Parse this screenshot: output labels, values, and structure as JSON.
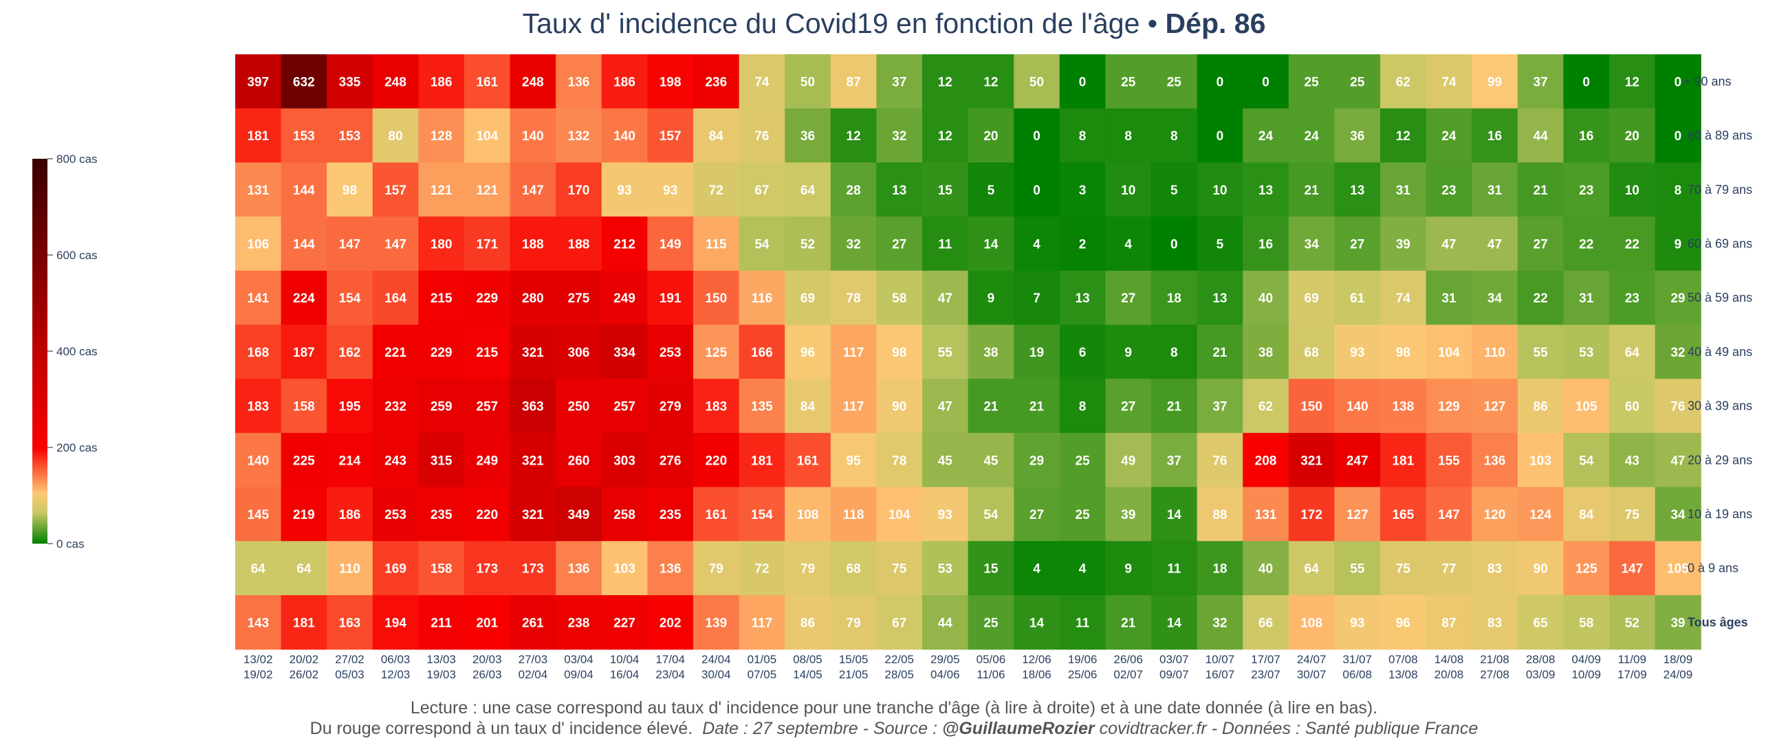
{
  "chart_data": {
    "type": "heatmap",
    "title": "Taux d' incidence du Covid19 en fonction de l'âge",
    "title_separator": "•",
    "title_department": "Dép. 86",
    "rows": [
      "+ 90 ans",
      "80 à 89 ans",
      "70 à 79 ans",
      "60 à 69 ans",
      "50 à 59 ans",
      "40 à 49 ans",
      "30 à 39 ans",
      "20 à 29 ans",
      "10 à 19 ans",
      "0 à 9 ans",
      "Tous âges"
    ],
    "columns": [
      [
        "13/02",
        "19/02"
      ],
      [
        "20/02",
        "26/02"
      ],
      [
        "27/02",
        "05/03"
      ],
      [
        "06/03",
        "12/03"
      ],
      [
        "13/03",
        "19/03"
      ],
      [
        "20/03",
        "26/03"
      ],
      [
        "27/03",
        "02/04"
      ],
      [
        "03/04",
        "09/04"
      ],
      [
        "10/04",
        "16/04"
      ],
      [
        "17/04",
        "23/04"
      ],
      [
        "24/04",
        "30/04"
      ],
      [
        "01/05",
        "07/05"
      ],
      [
        "08/05",
        "14/05"
      ],
      [
        "15/05",
        "21/05"
      ],
      [
        "22/05",
        "28/05"
      ],
      [
        "29/05",
        "04/06"
      ],
      [
        "05/06",
        "11/06"
      ],
      [
        "12/06",
        "18/06"
      ],
      [
        "19/06",
        "25/06"
      ],
      [
        "26/06",
        "02/07"
      ],
      [
        "03/07",
        "09/07"
      ],
      [
        "10/07",
        "16/07"
      ],
      [
        "17/07",
        "23/07"
      ],
      [
        "24/07",
        "30/07"
      ],
      [
        "31/07",
        "06/08"
      ],
      [
        "07/08",
        "13/08"
      ],
      [
        "14/08",
        "20/08"
      ],
      [
        "21/08",
        "27/08"
      ],
      [
        "28/08",
        "03/09"
      ],
      [
        "04/09",
        "10/09"
      ],
      [
        "11/09",
        "17/09"
      ],
      [
        "18/09",
        "24/09"
      ]
    ],
    "values": [
      [
        397,
        632,
        335,
        248,
        186,
        161,
        248,
        136,
        186,
        198,
        236,
        74,
        50,
        87,
        37,
        12,
        12,
        50,
        0,
        25,
        25,
        0,
        0,
        25,
        25,
        62,
        74,
        99,
        37,
        0,
        12,
        0
      ],
      [
        181,
        153,
        153,
        80,
        128,
        104,
        140,
        132,
        140,
        157,
        84,
        76,
        36,
        12,
        32,
        12,
        20,
        0,
        8,
        8,
        8,
        0,
        24,
        24,
        36,
        12,
        24,
        16,
        44,
        16,
        20,
        0
      ],
      [
        131,
        144,
        98,
        157,
        121,
        121,
        147,
        170,
        93,
        93,
        72,
        67,
        64,
        28,
        13,
        15,
        5,
        0,
        3,
        10,
        5,
        10,
        13,
        21,
        13,
        31,
        23,
        31,
        21,
        23,
        10,
        8
      ],
      [
        106,
        144,
        147,
        147,
        180,
        171,
        188,
        188,
        212,
        149,
        115,
        54,
        52,
        32,
        27,
        11,
        14,
        4,
        2,
        4,
        0,
        5,
        16,
        34,
        27,
        39,
        47,
        47,
        27,
        22,
        22,
        9
      ],
      [
        141,
        224,
        154,
        164,
        215,
        229,
        280,
        275,
        249,
        191,
        150,
        116,
        69,
        78,
        58,
        47,
        9,
        7,
        13,
        27,
        18,
        13,
        40,
        69,
        61,
        74,
        31,
        34,
        22,
        31,
        23,
        29
      ],
      [
        168,
        187,
        162,
        221,
        229,
        215,
        321,
        306,
        334,
        253,
        125,
        166,
        96,
        117,
        98,
        55,
        38,
        19,
        6,
        9,
        8,
        21,
        38,
        68,
        93,
        98,
        104,
        110,
        55,
        53,
        64,
        32
      ],
      [
        183,
        158,
        195,
        232,
        259,
        257,
        363,
        250,
        257,
        279,
        183,
        135,
        84,
        117,
        90,
        47,
        21,
        21,
        8,
        27,
        21,
        37,
        62,
        150,
        140,
        138,
        129,
        127,
        86,
        105,
        60,
        76
      ],
      [
        140,
        225,
        214,
        243,
        315,
        249,
        321,
        260,
        303,
        276,
        220,
        181,
        161,
        95,
        78,
        45,
        45,
        29,
        25,
        49,
        37,
        76,
        208,
        321,
        247,
        181,
        155,
        136,
        103,
        54,
        43,
        47
      ],
      [
        145,
        219,
        186,
        253,
        235,
        220,
        321,
        349,
        258,
        235,
        161,
        154,
        108,
        118,
        104,
        93,
        54,
        27,
        25,
        39,
        14,
        88,
        131,
        172,
        127,
        165,
        147,
        120,
        124,
        84,
        75,
        34
      ],
      [
        64,
        64,
        110,
        169,
        158,
        173,
        173,
        136,
        103,
        136,
        79,
        72,
        79,
        68,
        75,
        53,
        15,
        4,
        4,
        9,
        11,
        18,
        40,
        64,
        55,
        75,
        77,
        83,
        90,
        125,
        147,
        105
      ],
      [
        143,
        181,
        163,
        194,
        211,
        201,
        261,
        238,
        227,
        202,
        139,
        117,
        86,
        79,
        67,
        44,
        25,
        14,
        11,
        21,
        14,
        32,
        66,
        108,
        93,
        96,
        87,
        83,
        65,
        58,
        52,
        39
      ]
    ],
    "colorbar": {
      "range": [
        0,
        800
      ],
      "ticks": [
        800,
        600,
        400,
        200,
        0
      ],
      "tick_labels": [
        "800 cas",
        "600 cas",
        "400 cas",
        "200 cas",
        "0 cas"
      ]
    }
  },
  "footer": {
    "line1": "Lecture : une case correspond au taux d' incidence pour une tranche d'âge (à lire à droite) et à une date donnée (à lire en bas).",
    "line2_prefix": "Du rouge correspond à un taux d' incidence élevé.",
    "line2_date": "Date : 27 septembre - Source :",
    "line2_author": "@GuillaumeRozier",
    "line2_site": "covidtracker.fr - Données : Santé publique France"
  }
}
